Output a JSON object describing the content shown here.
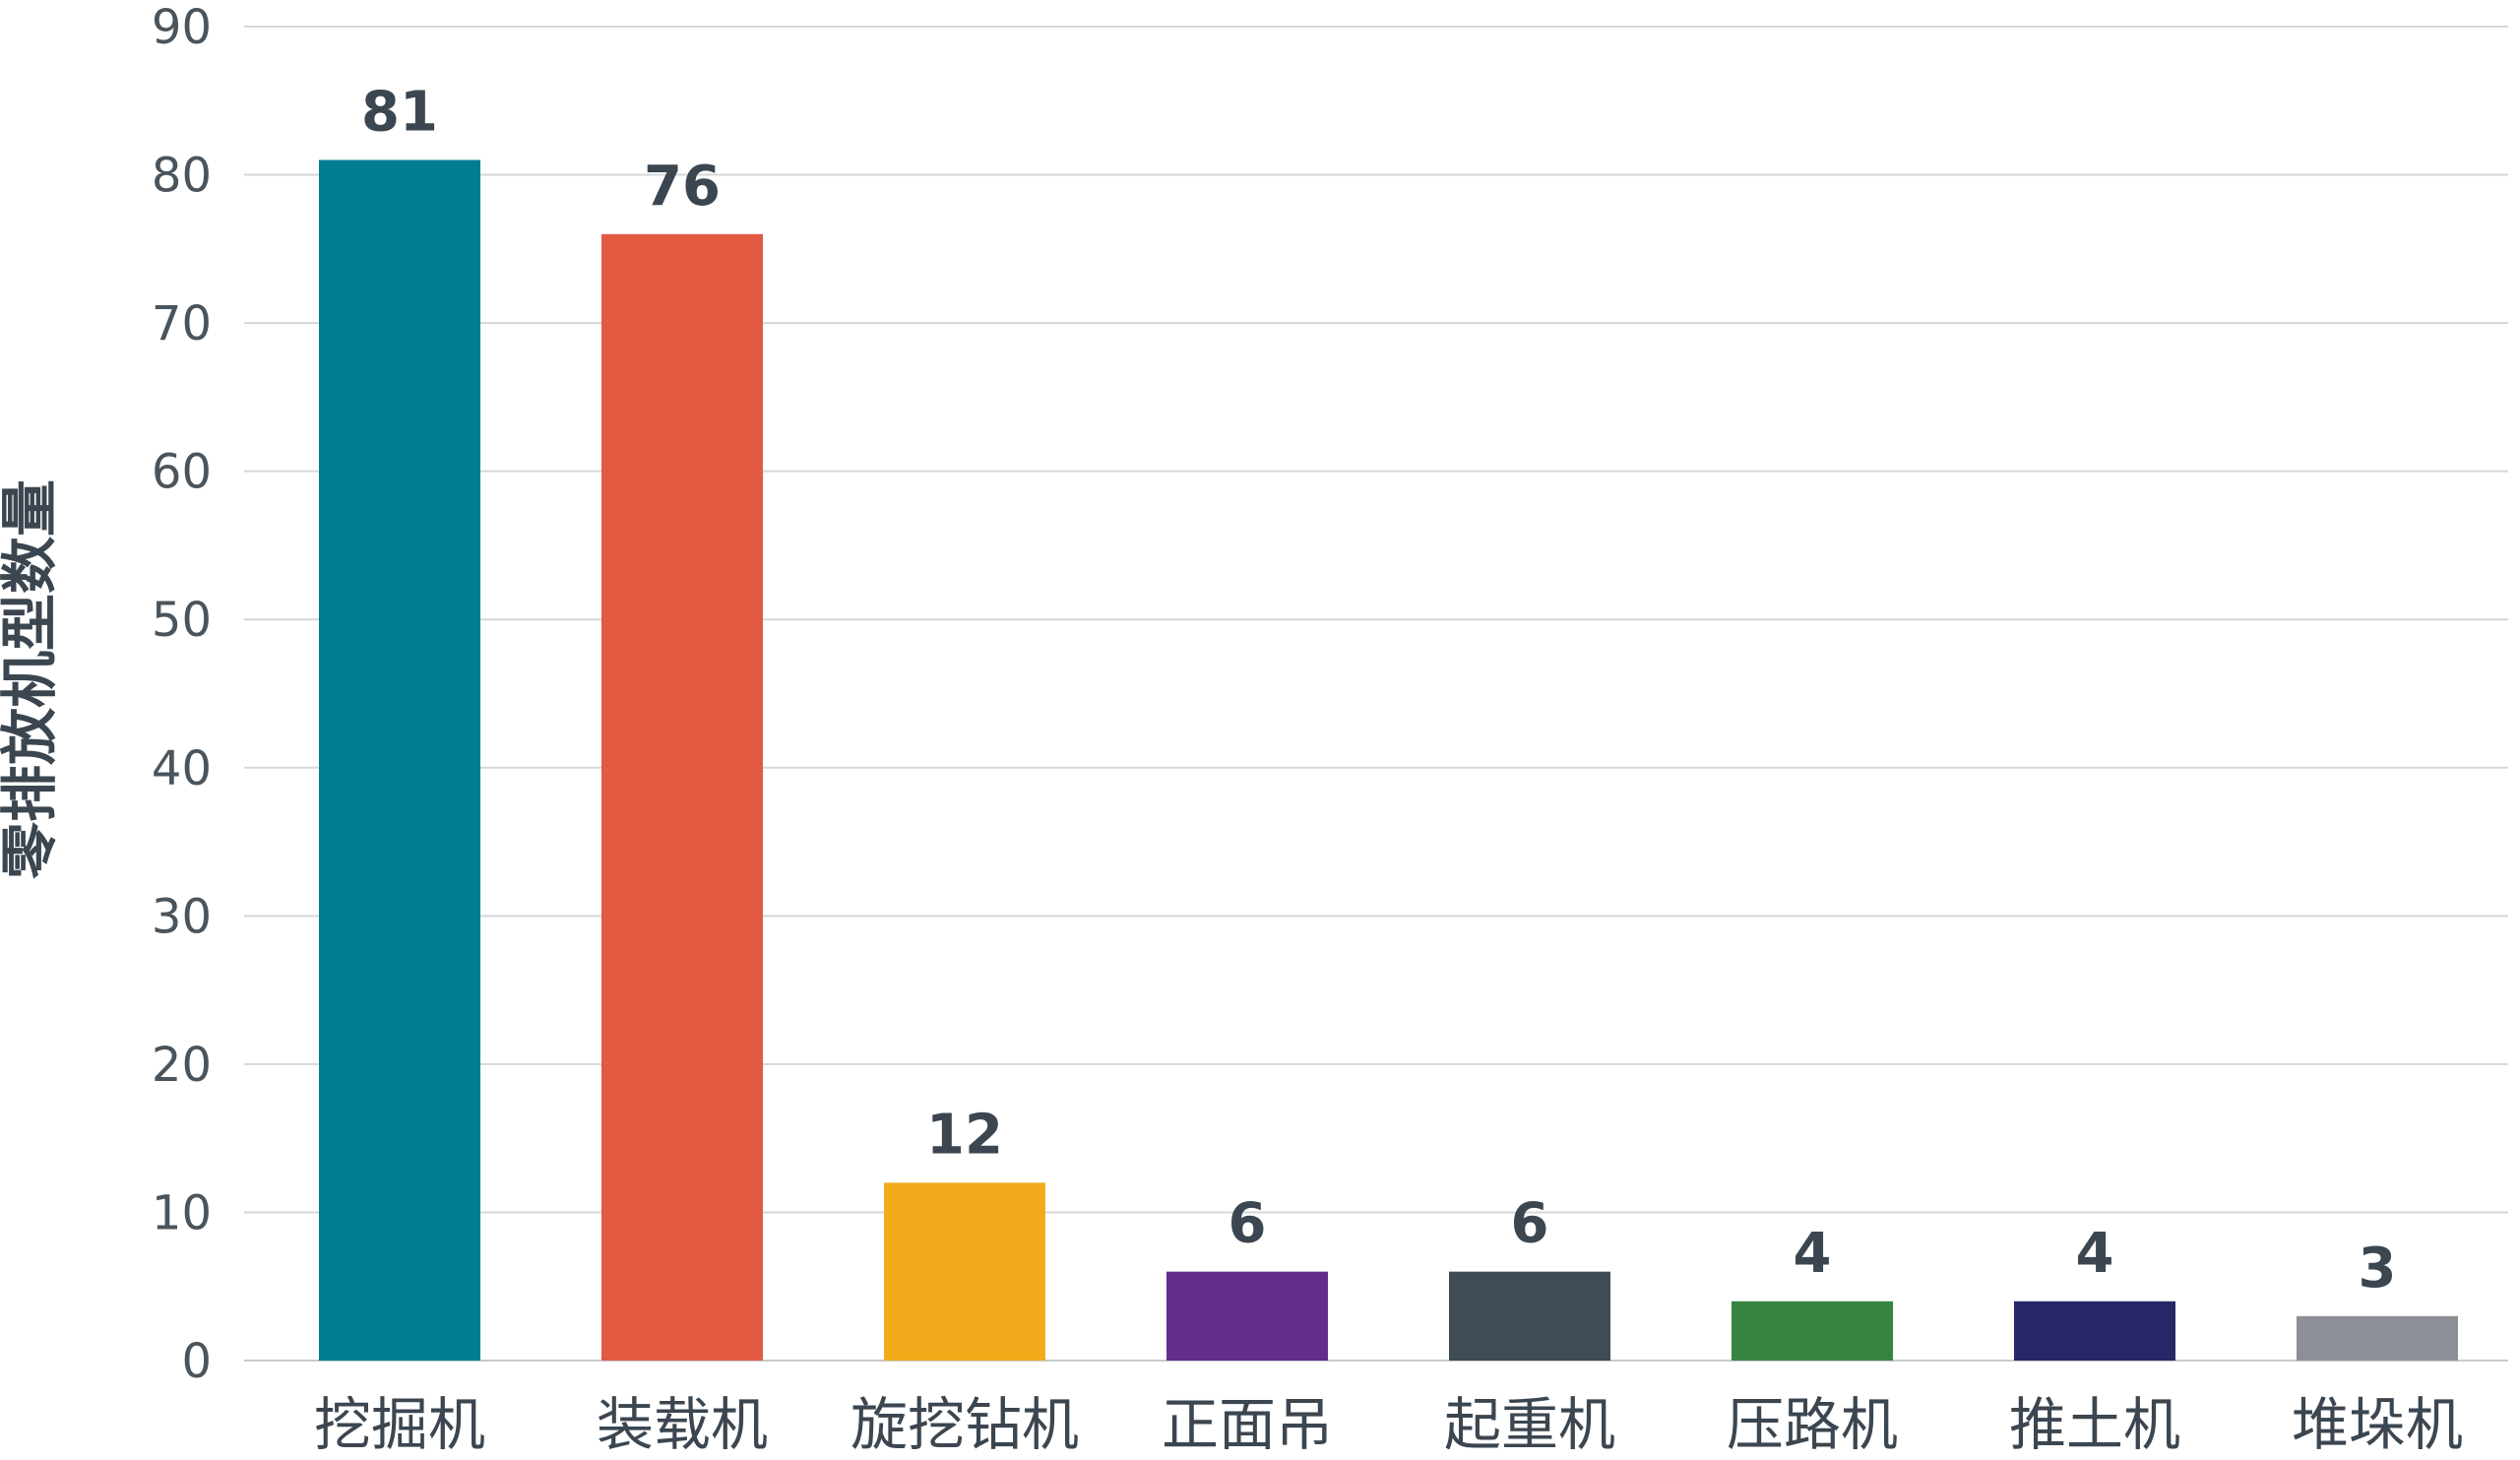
{
  "chart_data": {
    "type": "bar",
    "ylabel": "零排放机型数量",
    "xlabel": "",
    "ylim": [
      0,
      90
    ],
    "yticks": [
      0,
      10,
      20,
      30,
      40,
      50,
      60,
      70,
      80,
      90
    ],
    "grid": true,
    "categories": [
      "挖掘机",
      "装载机",
      "旋挖钻机",
      "正面吊",
      "起重机",
      "压路机",
      "推土机",
      "堆垛机"
    ],
    "values": [
      81,
      76,
      12,
      6,
      6,
      4,
      4,
      3
    ],
    "colors": [
      "#007d91",
      "#e35a43",
      "#f2ac1b",
      "#632d8c",
      "#3e4c55",
      "#358540",
      "#282868",
      "#8c8f96"
    ]
  }
}
